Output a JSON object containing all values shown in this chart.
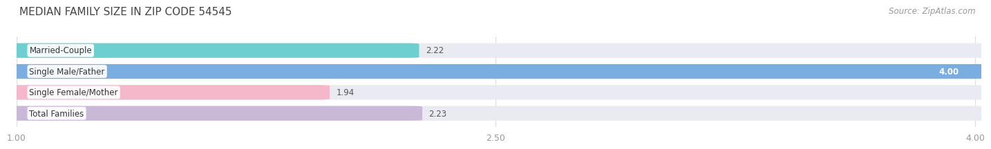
{
  "title": "MEDIAN FAMILY SIZE IN ZIP CODE 54545",
  "source": "Source: ZipAtlas.com",
  "categories": [
    "Married-Couple",
    "Single Male/Father",
    "Single Female/Mother",
    "Total Families"
  ],
  "values": [
    2.22,
    4.0,
    1.94,
    2.23
  ],
  "bar_colors": [
    "#6dcfcf",
    "#7aaee0",
    "#f5b8cb",
    "#c9b8d8"
  ],
  "xmin": 1.0,
  "xmax": 4.0,
  "xticks": [
    1.0,
    2.5,
    4.0
  ],
  "xtick_labels": [
    "1.00",
    "2.50",
    "4.00"
  ],
  "bar_height": 0.62,
  "background_color": "#ffffff",
  "bar_bg_color": "#eaeaf2",
  "title_fontsize": 11,
  "source_fontsize": 8.5,
  "label_fontsize": 8.5,
  "value_fontsize": 8.5,
  "tick_fontsize": 9
}
